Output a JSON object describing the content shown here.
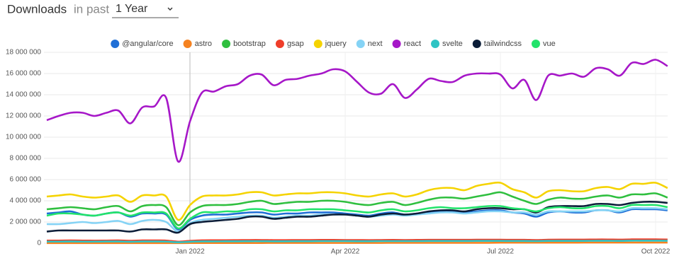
{
  "header": {
    "title": "Downloads",
    "subtitle": "in past",
    "period": "1 Year"
  },
  "chart_data": {
    "type": "line",
    "categories": [
      null,
      null,
      null,
      null,
      null,
      null,
      null,
      null,
      null,
      null,
      null,
      null,
      "Jan 2022",
      null,
      null,
      null,
      null,
      null,
      null,
      null,
      null,
      null,
      null,
      null,
      null,
      "Apr 2022",
      null,
      null,
      null,
      null,
      null,
      null,
      null,
      null,
      null,
      null,
      null,
      null,
      "Jul 2022",
      null,
      null,
      null,
      null,
      null,
      null,
      null,
      null,
      null,
      null,
      null,
      null,
      "Oct 2022",
      null
    ],
    "ylim": [
      0,
      18000000
    ],
    "yticks": [
      0,
      {
        "value": 2000000,
        "label": "2 000 000"
      },
      {
        "value": 4000000,
        "label": "4 000 000"
      },
      {
        "value": 6000000,
        "label": "6 000 000"
      },
      {
        "value": 8000000,
        "label": "8 000 000"
      },
      {
        "value": 10000000,
        "label": "10 000 000"
      },
      {
        "value": 12000000,
        "label": "12 000 000"
      },
      {
        "value": 14000000,
        "label": "14 000 000"
      },
      {
        "value": 16000000,
        "label": "16 000 000"
      },
      {
        "value": 18000000,
        "label": "18 000 000"
      }
    ],
    "grid": true,
    "series": [
      {
        "name": "@angular/core",
        "color": "#1f6fd6",
        "values": [
          2800000,
          2900000,
          3000000,
          2700000,
          2600000,
          2800000,
          2900000,
          2500000,
          2800000,
          2800000,
          2700000,
          1300000,
          2200000,
          2600000,
          2700000,
          2700000,
          2800000,
          2900000,
          2900000,
          2700000,
          2800000,
          2800000,
          2900000,
          2900000,
          2900000,
          2800000,
          2700000,
          2600000,
          2800000,
          2900000,
          2700000,
          2800000,
          2900000,
          3000000,
          3000000,
          2900000,
          3000000,
          3100000,
          3100000,
          2900000,
          2800000,
          2500000,
          2900000,
          3000000,
          2900000,
          2900000,
          3100000,
          3100000,
          2900000,
          3200000,
          3200000,
          3200000,
          3100000
        ]
      },
      {
        "name": "astro",
        "color": "#f58220",
        "values": [
          10000,
          10000,
          10000,
          10000,
          10000,
          10000,
          10000,
          10000,
          10000,
          10000,
          10000,
          10000,
          20000,
          20000,
          20000,
          20000,
          20000,
          20000,
          20000,
          30000,
          30000,
          30000,
          30000,
          30000,
          30000,
          30000,
          30000,
          30000,
          30000,
          40000,
          40000,
          40000,
          40000,
          40000,
          40000,
          40000,
          40000,
          40000,
          50000,
          50000,
          50000,
          50000,
          50000,
          50000,
          50000,
          60000,
          60000,
          60000,
          60000,
          60000,
          60000,
          60000,
          60000
        ]
      },
      {
        "name": "bootstrap",
        "color": "#2fbf3f",
        "values": [
          3200000,
          3300000,
          3400000,
          3300000,
          3200000,
          3400000,
          3500000,
          3000000,
          3500000,
          3600000,
          3400000,
          1700000,
          2900000,
          3500000,
          3600000,
          3600000,
          3700000,
          3900000,
          4000000,
          3700000,
          3800000,
          3900000,
          3900000,
          4000000,
          4000000,
          3900000,
          3700000,
          3600000,
          3800000,
          3900000,
          3600000,
          3800000,
          4100000,
          4300000,
          4300000,
          4200000,
          4400000,
          4600000,
          4800000,
          4400000,
          4000000,
          3700000,
          4100000,
          4300000,
          4200000,
          4200000,
          4400000,
          4500000,
          4300000,
          4600000,
          4600000,
          4700000,
          4300000
        ]
      },
      {
        "name": "gsap",
        "color": "#ef3e2a",
        "values": [
          250000,
          250000,
          260000,
          250000,
          240000,
          250000,
          260000,
          230000,
          260000,
          260000,
          250000,
          150000,
          220000,
          270000,
          280000,
          280000,
          290000,
          300000,
          300000,
          290000,
          290000,
          300000,
          300000,
          310000,
          310000,
          300000,
          300000,
          290000,
          300000,
          310000,
          300000,
          310000,
          320000,
          320000,
          320000,
          320000,
          330000,
          330000,
          330000,
          320000,
          320000,
          300000,
          330000,
          340000,
          340000,
          340000,
          350000,
          350000,
          340000,
          360000,
          360000,
          360000,
          350000
        ]
      },
      {
        "name": "jquery",
        "color": "#f5d300",
        "values": [
          4400000,
          4500000,
          4600000,
          4400000,
          4300000,
          4400000,
          4500000,
          3900000,
          4500000,
          4500000,
          4400000,
          2200000,
          3600000,
          4400000,
          4500000,
          4500000,
          4600000,
          4800000,
          4800000,
          4500000,
          4600000,
          4700000,
          4700000,
          4800000,
          4800000,
          4700000,
          4500000,
          4400000,
          4600000,
          4700000,
          4400000,
          4600000,
          5000000,
          5200000,
          5200000,
          5000000,
          5400000,
          5600000,
          5700000,
          5100000,
          4800000,
          4300000,
          4900000,
          5000000,
          4900000,
          4900000,
          5200000,
          5300000,
          5100000,
          5600000,
          5600000,
          5700000,
          5200000
        ]
      },
      {
        "name": "next",
        "color": "#85d3f5",
        "values": [
          1800000,
          1800000,
          1900000,
          2000000,
          1900000,
          2000000,
          2100000,
          1800000,
          2100000,
          2200000,
          2000000,
          1100000,
          1900000,
          2200000,
          2300000,
          2400000,
          2500000,
          2600000,
          2600000,
          2400000,
          2500000,
          2600000,
          2600000,
          2700000,
          2700000,
          2700000,
          2600000,
          2500000,
          2600000,
          2700000,
          2600000,
          2700000,
          2800000,
          2900000,
          2900000,
          2800000,
          2900000,
          3000000,
          3000000,
          2900000,
          2900000,
          2700000,
          3000000,
          3000000,
          3000000,
          3000000,
          3100000,
          3100000,
          3000000,
          3300000,
          3300000,
          3300000,
          3200000
        ]
      },
      {
        "name": "react",
        "color": "#a617c8",
        "values": [
          11600000,
          12000000,
          12300000,
          12300000,
          12000000,
          12300000,
          12500000,
          11300000,
          12800000,
          12900000,
          13700000,
          7700000,
          11500000,
          14200000,
          14300000,
          14800000,
          15000000,
          15800000,
          15900000,
          14900000,
          15400000,
          15500000,
          15800000,
          16000000,
          16400000,
          16200000,
          15200000,
          14200000,
          14100000,
          15000000,
          13700000,
          14500000,
          15500000,
          15300000,
          15200000,
          15800000,
          16000000,
          16000000,
          15900000,
          14600000,
          15400000,
          13500000,
          15800000,
          15800000,
          16000000,
          15700000,
          16500000,
          16400000,
          15800000,
          17000000,
          16900000,
          17300000,
          16700000
        ]
      },
      {
        "name": "svelte",
        "color": "#2ec4c4",
        "values": [
          150000,
          150000,
          160000,
          150000,
          150000,
          160000,
          160000,
          140000,
          160000,
          160000,
          150000,
          90000,
          140000,
          170000,
          170000,
          180000,
          180000,
          190000,
          190000,
          180000,
          180000,
          190000,
          190000,
          200000,
          200000,
          200000,
          190000,
          190000,
          200000,
          200000,
          200000,
          200000,
          210000,
          210000,
          210000,
          210000,
          220000,
          220000,
          220000,
          210000,
          210000,
          200000,
          220000,
          220000,
          220000,
          220000,
          230000,
          230000,
          220000,
          240000,
          240000,
          240000,
          230000
        ]
      },
      {
        "name": "tailwindcss",
        "color": "#0b1d38",
        "values": [
          1100000,
          1200000,
          1200000,
          1200000,
          1200000,
          1200000,
          1200000,
          1100000,
          1300000,
          1300000,
          1300000,
          1000000,
          1800000,
          2000000,
          2100000,
          2200000,
          2300000,
          2500000,
          2500000,
          2300000,
          2400000,
          2500000,
          2500000,
          2600000,
          2700000,
          2700000,
          2600000,
          2500000,
          2700000,
          2800000,
          2700000,
          2800000,
          3000000,
          3100000,
          3100000,
          3000000,
          3200000,
          3300000,
          3300000,
          3200000,
          3200000,
          2900000,
          3400000,
          3500000,
          3500000,
          3500000,
          3700000,
          3700000,
          3600000,
          3800000,
          3900000,
          3900000,
          3800000
        ]
      },
      {
        "name": "vue",
        "color": "#22e36b",
        "values": [
          2600000,
          2800000,
          2800000,
          2700000,
          2600000,
          2800000,
          2900000,
          2600000,
          2900000,
          2900000,
          2800000,
          1400000,
          2300000,
          2900000,
          2900000,
          3000000,
          3000000,
          3200000,
          3200000,
          3000000,
          3100000,
          3100000,
          3200000,
          3200000,
          3200000,
          3100000,
          3000000,
          2900000,
          3100000,
          3200000,
          3000000,
          3100000,
          3300000,
          3400000,
          3300000,
          3300000,
          3400000,
          3500000,
          3500000,
          3300000,
          3200000,
          3000000,
          3300000,
          3400000,
          3300000,
          3300000,
          3500000,
          3500000,
          3300000,
          3600000,
          3600000,
          3600000,
          3400000
        ]
      }
    ]
  }
}
